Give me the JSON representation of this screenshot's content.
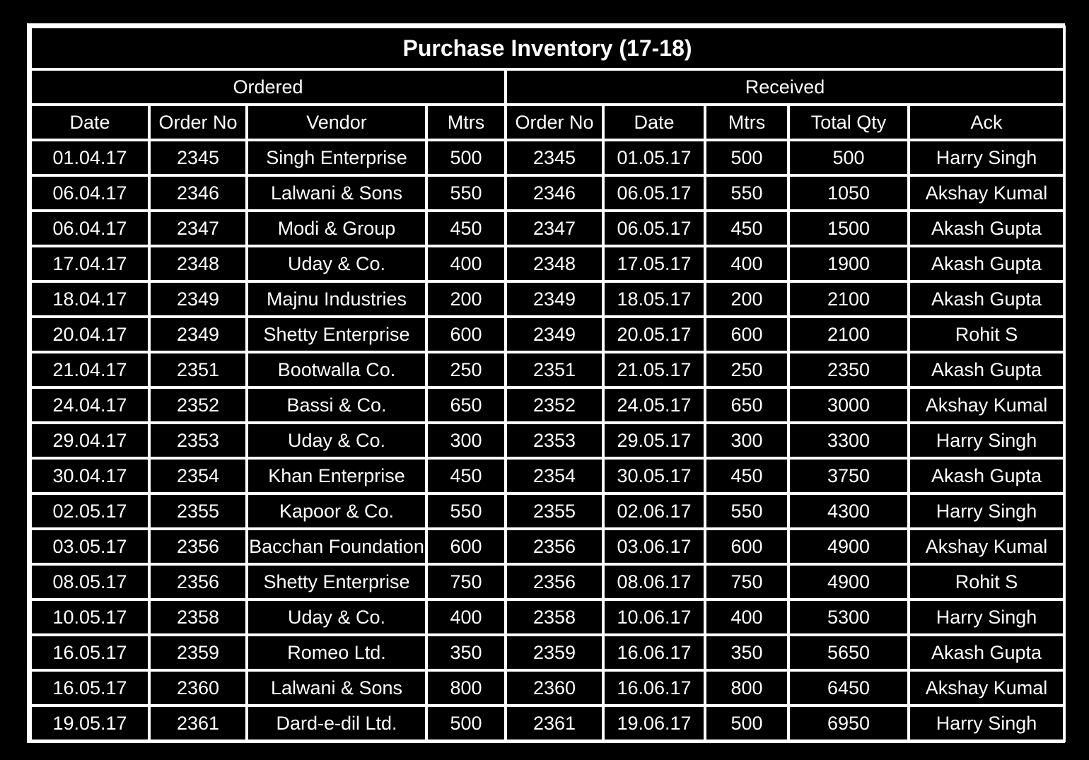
{
  "title": "Purchase Inventory (17-18)",
  "groups": {
    "ordered": "Ordered",
    "received": "Received"
  },
  "columns": [
    "Date",
    "Order No",
    "Vendor",
    "Mtrs",
    "Order No",
    "Date",
    "Mtrs",
    "Total Qty",
    "Ack"
  ],
  "rows": [
    [
      "01.04.17",
      "2345",
      "Singh Enterprise",
      "500",
      "2345",
      "01.05.17",
      "500",
      "500",
      "Harry Singh"
    ],
    [
      "06.04.17",
      "2346",
      "Lalwani & Sons",
      "550",
      "2346",
      "06.05.17",
      "550",
      "1050",
      "Akshay Kumal"
    ],
    [
      "06.04.17",
      "2347",
      "Modi & Group",
      "450",
      "2347",
      "06.05.17",
      "450",
      "1500",
      "Akash Gupta"
    ],
    [
      "17.04.17",
      "2348",
      "Uday & Co.",
      "400",
      "2348",
      "17.05.17",
      "400",
      "1900",
      "Akash Gupta"
    ],
    [
      "18.04.17",
      "2349",
      "Majnu Industries",
      "200",
      "2349",
      "18.05.17",
      "200",
      "2100",
      "Akash Gupta"
    ],
    [
      "20.04.17",
      "2349",
      "Shetty Enterprise",
      "600",
      "2349",
      "20.05.17",
      "600",
      "2100",
      "Rohit S"
    ],
    [
      "21.04.17",
      "2351",
      "Bootwalla Co.",
      "250",
      "2351",
      "21.05.17",
      "250",
      "2350",
      "Akash Gupta"
    ],
    [
      "24.04.17",
      "2352",
      "Bassi & Co.",
      "650",
      "2352",
      "24.05.17",
      "650",
      "3000",
      "Akshay Kumal"
    ],
    [
      "29.04.17",
      "2353",
      "Uday & Co.",
      "300",
      "2353",
      "29.05.17",
      "300",
      "3300",
      "Harry Singh"
    ],
    [
      "30.04.17",
      "2354",
      "Khan Enterprise",
      "450",
      "2354",
      "30.05.17",
      "450",
      "3750",
      "Akash Gupta"
    ],
    [
      "02.05.17",
      "2355",
      "Kapoor & Co.",
      "550",
      "2355",
      "02.06.17",
      "550",
      "4300",
      "Harry Singh"
    ],
    [
      "03.05.17",
      "2356",
      "Bacchan Foundation",
      "600",
      "2356",
      "03.06.17",
      "600",
      "4900",
      "Akshay Kumal"
    ],
    [
      "08.05.17",
      "2356",
      "Shetty Enterprise",
      "750",
      "2356",
      "08.06.17",
      "750",
      "4900",
      "Rohit S"
    ],
    [
      "10.05.17",
      "2358",
      "Uday & Co.",
      "400",
      "2358",
      "10.06.17",
      "400",
      "5300",
      "Harry Singh"
    ],
    [
      "16.05.17",
      "2359",
      "Romeo Ltd.",
      "350",
      "2359",
      "16.06.17",
      "350",
      "5650",
      "Akash Gupta"
    ],
    [
      "16.05.17",
      "2360",
      "Lalwani & Sons",
      "800",
      "2360",
      "16.06.17",
      "800",
      "6450",
      "Akshay Kumal"
    ],
    [
      "19.05.17",
      "2361",
      "Dard-e-dil Ltd.",
      "500",
      "2361",
      "19.06.17",
      "500",
      "6950",
      "Harry Singh"
    ]
  ],
  "colors": {
    "background": "#000000",
    "grid": "#ffffff",
    "text": "#ffffff"
  }
}
